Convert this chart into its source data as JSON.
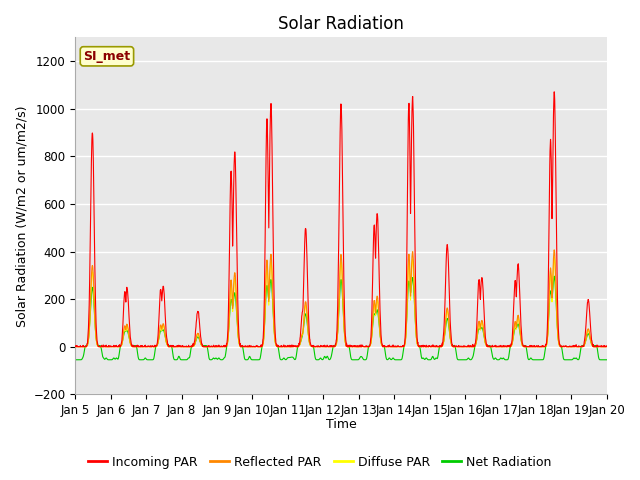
{
  "title": "Solar Radiation",
  "xlabel": "Time",
  "ylabel": "Solar Radiation (W/m2 or um/m2/s)",
  "ylim": [
    -200,
    1300
  ],
  "yticks": [
    -200,
    0,
    200,
    400,
    600,
    800,
    1000,
    1200
  ],
  "x_tick_labels": [
    "Jan 5",
    "Jan 6",
    "Jan 7",
    "Jan 8",
    "Jan 9",
    "Jan 10",
    "Jan 11",
    "Jan 12",
    "Jan 13",
    "Jan 14",
    "Jan 15",
    "Jan 16",
    "Jan 17",
    "Jan 18",
    "Jan 19",
    "Jan 20"
  ],
  "legend_label": "SI_met",
  "series_labels": [
    "Incoming PAR",
    "Reflected PAR",
    "Diffuse PAR",
    "Net Radiation"
  ],
  "series_colors": [
    "#ff0000",
    "#ff8800",
    "#ffff00",
    "#00cc00"
  ],
  "fig_bg_color": "#ffffff",
  "plot_bg_color": "#e8e8e8",
  "grid_color": "#ffffff",
  "title_fontsize": 12,
  "axis_fontsize": 9,
  "tick_fontsize": 8.5,
  "legend_fontsize": 9
}
